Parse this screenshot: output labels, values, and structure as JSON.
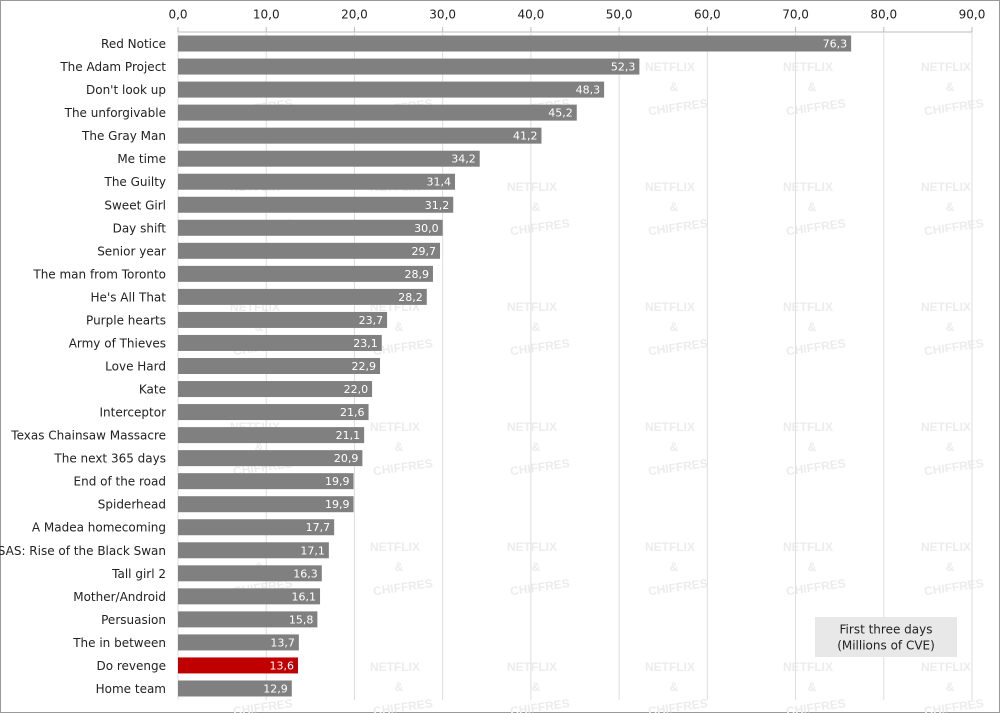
{
  "chart_data": {
    "type": "bar",
    "orientation": "horizontal",
    "categories": [
      "Red Notice",
      "The Adam Project",
      "Don't look up",
      "The unforgivable",
      "The Gray Man",
      "Me time",
      "The Guilty",
      "Sweet Girl",
      "Day shift",
      "Senior year",
      "The man from Toronto",
      "He's All That",
      "Purple hearts",
      "Army of Thieves",
      "Love Hard",
      "Kate",
      "Interceptor",
      "Texas Chainsaw Massacre",
      "The next 365 days",
      "End of the road",
      "Spiderhead",
      "A Madea homecoming",
      "SAS: Rise of the Black Swan",
      "Tall girl 2",
      "Mother/Android",
      "Persuasion",
      "The in between",
      "Do revenge",
      "Home team"
    ],
    "values": [
      76.3,
      52.3,
      48.3,
      45.2,
      41.2,
      34.2,
      31.4,
      31.2,
      30.0,
      29.7,
      28.9,
      28.2,
      23.7,
      23.1,
      22.9,
      22.0,
      21.6,
      21.1,
      20.9,
      19.9,
      19.9,
      17.7,
      17.1,
      16.3,
      16.1,
      15.8,
      13.7,
      13.6,
      12.9
    ],
    "value_labels": [
      "76,3",
      "52,3",
      "48,3",
      "45,2",
      "41,2",
      "34,2",
      "31,4",
      "31,2",
      "30,0",
      "29,7",
      "28,9",
      "28,2",
      "23,7",
      "23,1",
      "22,9",
      "22,0",
      "21,6",
      "21,1",
      "20,9",
      "19,9",
      "19,9",
      "17,7",
      "17,1",
      "16,3",
      "16,1",
      "15,8",
      "13,7",
      "13,6",
      "12,9"
    ],
    "colors": [
      "#808080",
      "#808080",
      "#808080",
      "#808080",
      "#808080",
      "#808080",
      "#808080",
      "#808080",
      "#808080",
      "#808080",
      "#808080",
      "#808080",
      "#808080",
      "#808080",
      "#808080",
      "#808080",
      "#808080",
      "#808080",
      "#808080",
      "#808080",
      "#808080",
      "#808080",
      "#808080",
      "#808080",
      "#808080",
      "#808080",
      "#808080",
      "#c00000",
      "#808080"
    ],
    "xlim": [
      0,
      90
    ],
    "xticks": [
      {
        "value": 0,
        "label": "0,0"
      },
      {
        "value": 10,
        "label": "10,0"
      },
      {
        "value": 20,
        "label": "20,0"
      },
      {
        "value": 30,
        "label": "30,0"
      },
      {
        "value": 40,
        "label": "40,0"
      },
      {
        "value": 50,
        "label": "50,0"
      },
      {
        "value": 60,
        "label": "60,0"
      },
      {
        "value": 70,
        "label": "70,0"
      },
      {
        "value": 80,
        "label": "80,0"
      },
      {
        "value": 90,
        "label": "90,0"
      }
    ],
    "grid": true,
    "annotation": [
      "First three days",
      "(Millions of CVE)"
    ],
    "watermark": [
      "NETFLIX",
      "&",
      "CHIFFRES"
    ]
  }
}
